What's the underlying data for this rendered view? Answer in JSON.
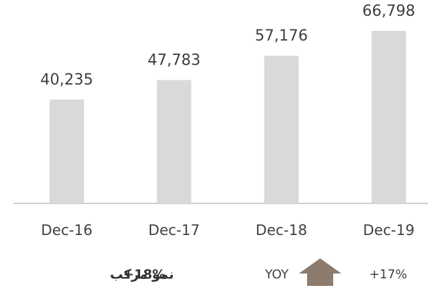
{
  "chart_data": {
    "type": "bar",
    "categories": [
      "Dec-16",
      "Dec-17",
      "Dec-18",
      "Dec-19"
    ],
    "values": [
      40235,
      47783,
      57176,
      66798
    ],
    "value_labels": [
      "40,235",
      "47,783",
      "57,176",
      "66,798"
    ],
    "color": "#d9d9d9",
    "annotations": {
      "cagr_text": "نمو مركب",
      "cagr_value": "+18%",
      "yoy_text": "YOY",
      "yoy_value": "+17%",
      "arrow_color": "#8c7b6f"
    }
  }
}
